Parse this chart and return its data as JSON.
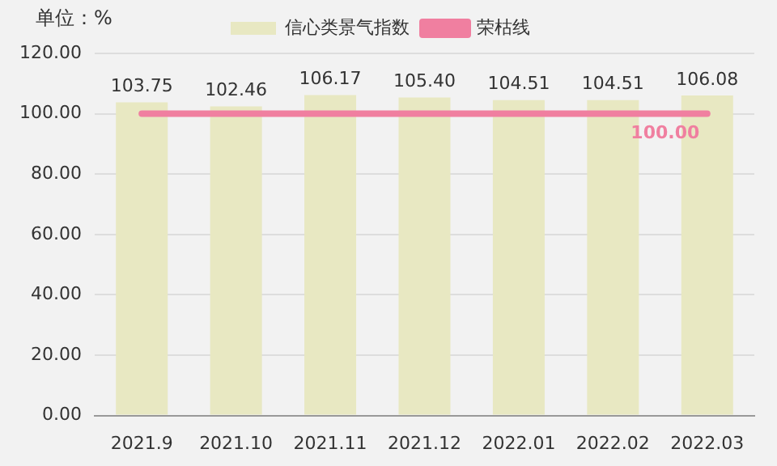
{
  "chart_data": {
    "type": "bar",
    "ylabel": "单位：%",
    "categories": [
      "2021.9",
      "2021.10",
      "2021.11",
      "2021.12",
      "2022.01",
      "2022.02",
      "2022.03"
    ],
    "series": [
      {
        "name": "信心类景气指数",
        "color": "#e8e8c2",
        "values": [
          103.75,
          102.46,
          106.17,
          105.4,
          104.51,
          104.51,
          106.08
        ],
        "value_labels": [
          "103.75",
          "102.46",
          "106.17",
          "105.40",
          "104.51",
          "104.51",
          "106.08"
        ]
      },
      {
        "name": "荣枯线",
        "type": "line",
        "color": "#f07fa0",
        "values": [
          100,
          100,
          100,
          100,
          100,
          100,
          100
        ],
        "value_labels": [
          null,
          null,
          null,
          null,
          null,
          null,
          "100.00"
        ]
      }
    ],
    "ylim": [
      0,
      120
    ],
    "yticks": [
      {
        "value": 0,
        "label": "0.00"
      },
      {
        "value": 20,
        "label": "20.00"
      },
      {
        "value": 40,
        "label": "40.00"
      },
      {
        "value": 60,
        "label": "60.00"
      },
      {
        "value": 80,
        "label": "80.00"
      },
      {
        "value": 100,
        "label": "100.00"
      },
      {
        "value": 120,
        "label": "120.00"
      }
    ],
    "grid": "y",
    "legend": "top",
    "marker": "none"
  }
}
